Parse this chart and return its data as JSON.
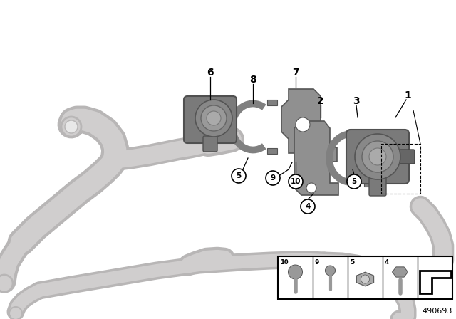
{
  "bg_color": "#ffffff",
  "part_number": "490693",
  "gray_pipe": "#d0cece",
  "gray_pipe_dark": "#b8b6b6",
  "gray_part": "#8a8a8a",
  "gray_part_light": "#aaaaaa",
  "gray_bracket": "#909090"
}
